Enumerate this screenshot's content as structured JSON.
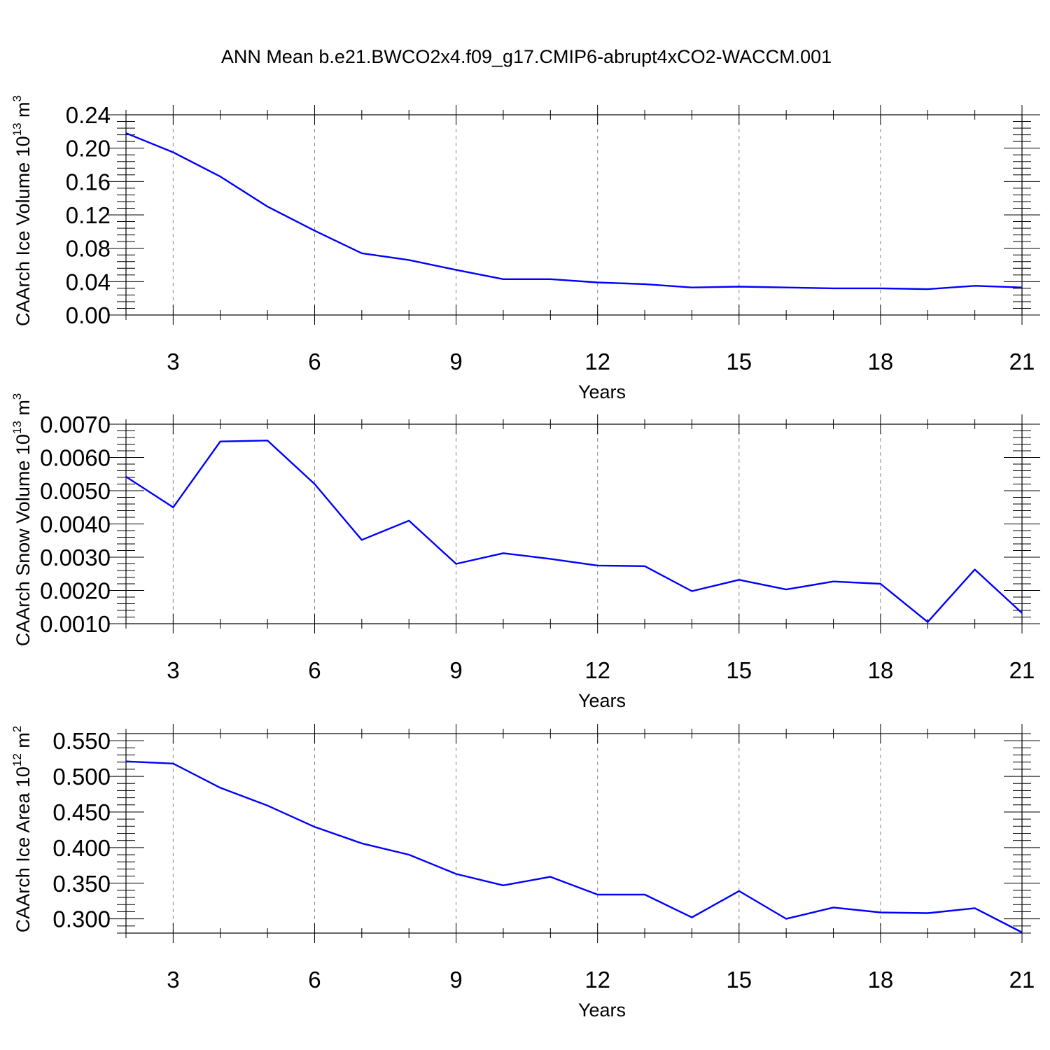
{
  "title": "ANN Mean b.e21.BWCO2x4.f09_g17.CMIP6-abrupt4xCO2-WACCM.001",
  "colors": {
    "series": "#0000ff",
    "frame": "#000000",
    "grid": "#888888"
  },
  "chart_data": [
    {
      "type": "line",
      "name": "ice-volume",
      "title": "ANN Mean b.e21.BWCO2x4.f09_g17.CMIP6-abrupt4xCO2-WACCM.001",
      "xlabel": "Years",
      "ylabel": {
        "prefix": "CAArch Ice Volume 10",
        "exp": "13",
        "unit": " m",
        "unit_exp": "3"
      },
      "xlim": [
        2,
        21
      ],
      "ylim": [
        0.0,
        0.24
      ],
      "xticks": [
        3,
        6,
        9,
        12,
        15,
        18,
        21
      ],
      "xtick_labels": [
        "3",
        "6",
        "9",
        "12",
        "15",
        "18",
        "21"
      ],
      "yticks": [
        0.0,
        0.04,
        0.08,
        0.12,
        0.16,
        0.2,
        0.24
      ],
      "ytick_labels": [
        "0.00",
        "0.04",
        "0.08",
        "0.12",
        "0.16",
        "0.20",
        "0.24"
      ],
      "grid": "vertical-dashed",
      "x": [
        2,
        3,
        4,
        5,
        6,
        7,
        8,
        9,
        10,
        11,
        12,
        13,
        14,
        15,
        16,
        17,
        18,
        19,
        20,
        21
      ],
      "y": [
        0.218,
        0.195,
        0.166,
        0.13,
        0.101,
        0.074,
        0.066,
        0.054,
        0.043,
        0.043,
        0.039,
        0.037,
        0.033,
        0.034,
        0.033,
        0.032,
        0.032,
        0.031,
        0.035,
        0.033
      ]
    },
    {
      "type": "line",
      "name": "snow-volume",
      "xlabel": "Years",
      "ylabel": {
        "prefix": "CAArch Snow Volume 10",
        "exp": "13",
        "unit": " m",
        "unit_exp": "3"
      },
      "xlim": [
        2,
        21
      ],
      "ylim": [
        0.001,
        0.007
      ],
      "xticks": [
        3,
        6,
        9,
        12,
        15,
        18,
        21
      ],
      "xtick_labels": [
        "3",
        "6",
        "9",
        "12",
        "15",
        "18",
        "21"
      ],
      "yticks": [
        0.001,
        0.002,
        0.003,
        0.004,
        0.005,
        0.006,
        0.007
      ],
      "ytick_labels": [
        "0.0010",
        "0.0020",
        "0.0030",
        "0.0040",
        "0.0050",
        "0.0060",
        "0.0070"
      ],
      "grid": "vertical-dashed",
      "x": [
        2,
        3,
        4,
        5,
        6,
        7,
        8,
        9,
        10,
        11,
        12,
        13,
        14,
        15,
        16,
        17,
        18,
        19,
        20,
        21
      ],
      "y": [
        0.00542,
        0.0045,
        0.00648,
        0.00651,
        0.0052,
        0.00352,
        0.0041,
        0.0028,
        0.00312,
        0.00295,
        0.00275,
        0.00273,
        0.00198,
        0.00232,
        0.00203,
        0.00227,
        0.0022,
        0.00105,
        0.00263,
        0.00132
      ]
    },
    {
      "type": "line",
      "name": "ice-area",
      "xlabel": "Years",
      "ylabel": {
        "prefix": "CAArch Ice Area 10",
        "exp": "12",
        "unit": " m",
        "unit_exp": "2"
      },
      "xlim": [
        2,
        21
      ],
      "ylim": [
        0.28,
        0.56
      ],
      "xticks": [
        3,
        6,
        9,
        12,
        15,
        18,
        21
      ],
      "xtick_labels": [
        "3",
        "6",
        "9",
        "12",
        "15",
        "18",
        "21"
      ],
      "yticks": [
        0.3,
        0.35,
        0.4,
        0.45,
        0.5,
        0.55
      ],
      "ytick_labels": [
        "0.300",
        "0.350",
        "0.400",
        "0.450",
        "0.500",
        "0.550"
      ],
      "grid": "vertical-dashed",
      "x": [
        2,
        3,
        4,
        5,
        6,
        7,
        8,
        9,
        10,
        11,
        12,
        13,
        14,
        15,
        16,
        17,
        18,
        19,
        20,
        21
      ],
      "y": [
        0.521,
        0.518,
        0.484,
        0.459,
        0.429,
        0.406,
        0.39,
        0.363,
        0.347,
        0.359,
        0.334,
        0.334,
        0.302,
        0.339,
        0.3,
        0.316,
        0.309,
        0.308,
        0.315,
        0.281
      ]
    }
  ]
}
